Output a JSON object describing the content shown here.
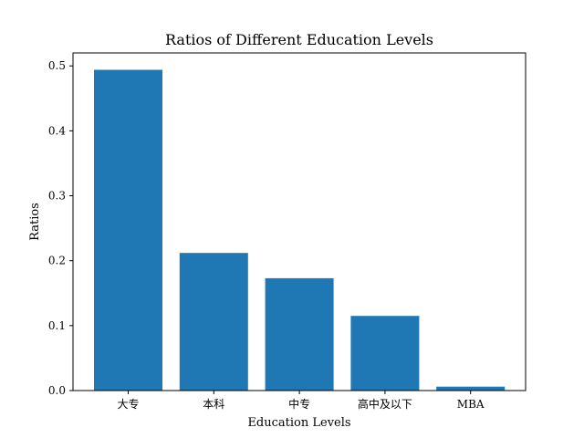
{
  "chart_data": {
    "type": "bar",
    "title": "Ratios of Different Education Levels",
    "xlabel": "Education Levels",
    "ylabel": "Ratios",
    "categories": [
      "大专",
      "本科",
      "中专",
      "高中及以下",
      "MBA"
    ],
    "values": [
      0.494,
      0.212,
      0.173,
      0.115,
      0.006
    ],
    "ylim": [
      0,
      0.52
    ],
    "yticks": [
      0.0,
      0.1,
      0.2,
      0.3,
      0.4,
      0.5
    ],
    "ytick_labels": [
      "0.0",
      "0.1",
      "0.2",
      "0.3",
      "0.4",
      "0.5"
    ],
    "bar_color": "#1f77b4",
    "grid": false,
    "legend": "none"
  }
}
